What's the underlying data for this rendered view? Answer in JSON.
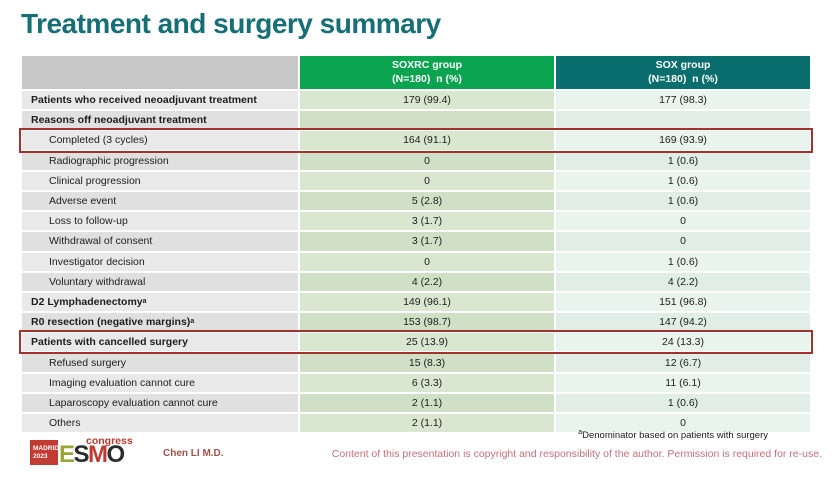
{
  "slide": {
    "title": "Treatment and surgery summary",
    "presenter": "Chen LI M.D.",
    "footnote_marker": "a",
    "footnote_text": "Denominator based on patients with surgery",
    "copyright": "Content of this presentation is copyright and responsibility of the author. Permission is required for re-use."
  },
  "logo": {
    "city": "MADRID",
    "year": "2023",
    "letter_e": "E",
    "letter_s": "S",
    "letter_m": "M",
    "letter_o": "O",
    "congress": "congress"
  },
  "colors": {
    "title_teal": "#156f75",
    "header_green": "#0aa350",
    "header_teal": "#0b6e6e",
    "soxrc_cell_green": "#d9e7d1",
    "sox_cell_mint": "#eaf4ef",
    "label_cell_gray": "#e9e9e9",
    "highlight_red": "#a2322c",
    "copyright_rose": "#c4717c",
    "presenter_red": "#a0524a",
    "logo_red": "#c23b33"
  },
  "table": {
    "header": {
      "group1_line1": "SOXRC group",
      "group1_line2": "(N=180)  n (%)",
      "group2_line1": "SOX group",
      "group2_line2": "(N=180)  n (%)"
    },
    "rows": [
      {
        "label": "Patients who received neoadjuvant treatment",
        "soxrc": "179 (99.4)",
        "sox": "177 (98.3)",
        "bold": true,
        "indent": false,
        "highlight": false
      },
      {
        "label": "Reasons off neoadjuvant treatment",
        "soxrc": "",
        "sox": "",
        "bold": true,
        "indent": false,
        "highlight": false
      },
      {
        "label": "Completed (3 cycles)",
        "soxrc": "164 (91.1)",
        "sox": "169 (93.9)",
        "bold": false,
        "indent": true,
        "highlight": true
      },
      {
        "label": "Radiographic progression",
        "soxrc": "0",
        "sox": "1 (0.6)",
        "bold": false,
        "indent": true,
        "highlight": false
      },
      {
        "label": "Clinical progression",
        "soxrc": "0",
        "sox": "1 (0.6)",
        "bold": false,
        "indent": true,
        "highlight": false
      },
      {
        "label": "Adverse event",
        "soxrc": "5 (2.8)",
        "sox": "1 (0.6)",
        "bold": false,
        "indent": true,
        "highlight": false
      },
      {
        "label": "Loss to follow-up",
        "soxrc": "3 (1.7)",
        "sox": "0",
        "bold": false,
        "indent": true,
        "highlight": false
      },
      {
        "label": "Withdrawal of consent",
        "soxrc": "3 (1.7)",
        "sox": "0",
        "bold": false,
        "indent": true,
        "highlight": false
      },
      {
        "label": "Investigator decision",
        "soxrc": "0",
        "sox": "1 (0.6)",
        "bold": false,
        "indent": true,
        "highlight": false
      },
      {
        "label": "Voluntary withdrawal",
        "soxrc": "4 (2.2)",
        "sox": "4 (2.2)",
        "bold": false,
        "indent": true,
        "highlight": false
      },
      {
        "label": "D2 Lymphadenectomy",
        "sup": "a",
        "soxrc": "149 (96.1)",
        "sox": "151 (96.8)",
        "bold": true,
        "indent": false,
        "highlight": false
      },
      {
        "label": "R0 resection (negative margins)",
        "sup": "a",
        "soxrc": "153 (98.7)",
        "sox": "147 (94.2)",
        "bold": true,
        "indent": false,
        "highlight": false
      },
      {
        "label": "Patients with cancelled surgery",
        "soxrc": "25 (13.9)",
        "sox": "24 (13.3)",
        "bold": true,
        "indent": false,
        "highlight": true
      },
      {
        "label": "Refused surgery",
        "soxrc": "15 (8.3)",
        "sox": "12 (6.7)",
        "bold": false,
        "indent": true,
        "highlight": false
      },
      {
        "label": "Imaging evaluation cannot cure",
        "soxrc": "6 (3.3)",
        "sox": "11 (6.1)",
        "bold": false,
        "indent": true,
        "highlight": false
      },
      {
        "label": "Laparoscopy evaluation cannot cure",
        "soxrc": "2 (1.1)",
        "sox": "1 (0.6)",
        "bold": false,
        "indent": true,
        "highlight": false
      },
      {
        "label": "Others",
        "soxrc": "2 (1.1)",
        "sox": "0",
        "bold": false,
        "indent": true,
        "highlight": false
      }
    ]
  }
}
